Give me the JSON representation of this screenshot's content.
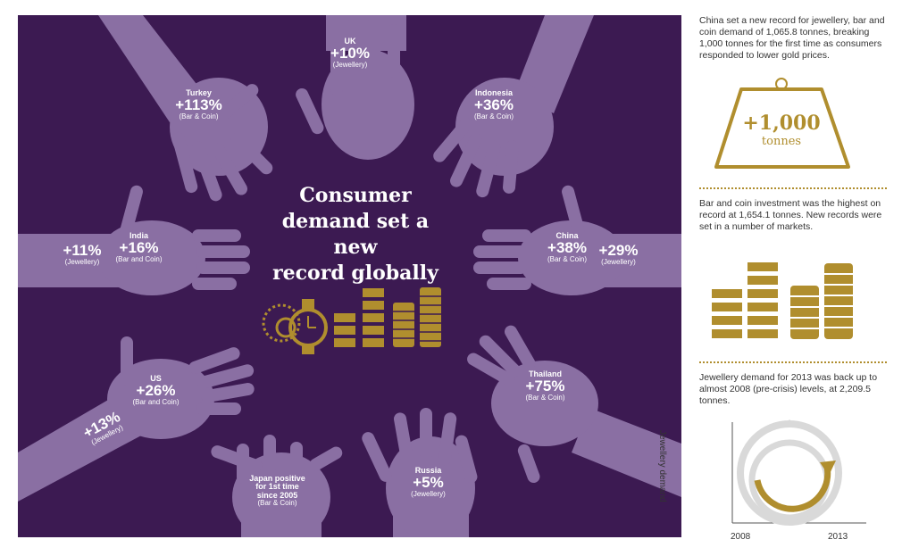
{
  "headline": [
    "Consumer",
    "demand set a new",
    "record globally"
  ],
  "markets": {
    "uk": {
      "name": "UK",
      "value": "+10%",
      "type": "(Jewellery)"
    },
    "turkey": {
      "name": "Turkey",
      "value": "+113%",
      "type": "(Bar & Coin)"
    },
    "indonesia": {
      "name": "Indonesia",
      "value": "+36%",
      "type": "(Bar & Coin)"
    },
    "india": {
      "name": "India",
      "jewellery_value": "+11%",
      "jewellery_type": "(Jewellery)",
      "bar_value": "+16%",
      "bar_type": "(Bar and Coin)"
    },
    "china": {
      "name": "China",
      "bar_value": "+38%",
      "bar_type": "(Bar & Coin)",
      "jewellery_value": "+29%",
      "jewellery_type": "(Jewellery)"
    },
    "us": {
      "name": "US",
      "bar_value": "+26%",
      "bar_type": "(Bar and Coin)",
      "jewellery_value": "+13%",
      "jewellery_type": "(Jewellery)"
    },
    "thailand": {
      "name": "Thailand",
      "value": "+75%",
      "type": "(Bar & Coin)"
    },
    "japan": {
      "name_lines": [
        "Japan positive",
        "for 1st time",
        "since 2005"
      ],
      "type": "(Bar & Coin)"
    },
    "russia": {
      "name": "Russia",
      "value": "+5%",
      "type": "(Jewellery)"
    }
  },
  "sidebar": {
    "china_text": "China set a new record for jewellery, bar and coin demand of 1,065.8 tonnes, breaking 1,000 tonnes for the first time as consumers responded to lower gold prices.",
    "weight": {
      "value": "+1,000",
      "unit": "tonnes"
    },
    "bar_text": "Bar and coin investment was the highest on record at 1,654.1 tonnes. New records were set in a number of markets.",
    "jewellery_text": "Jewellery demand for 2013 was back up to almost 2008 (pre-crisis) levels, at 2,209.5 tonnes.",
    "chart": {
      "y_label": "Jewellery demand",
      "x_start": "2008",
      "x_end": "2013"
    }
  },
  "colors": {
    "panel": "#3c1a52",
    "hand": "#8a6fa3",
    "gold": "#b08e2e",
    "white": "#ffffff"
  }
}
